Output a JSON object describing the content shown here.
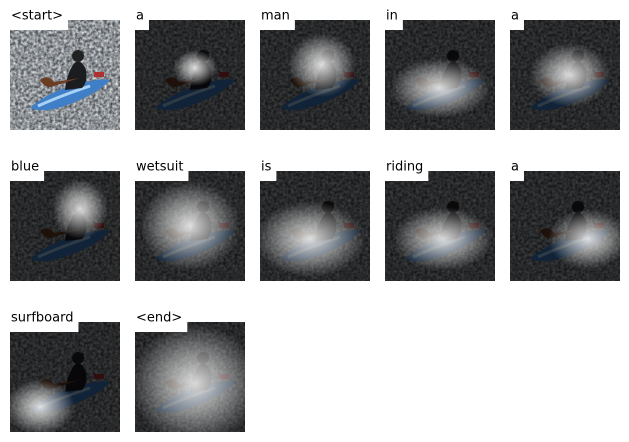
{
  "words": [
    "<start>",
    "a",
    "man",
    "in",
    "a",
    "blue",
    "wetsuit",
    "is",
    "riding",
    "a",
    "surfboard",
    "<end>"
  ]
}
